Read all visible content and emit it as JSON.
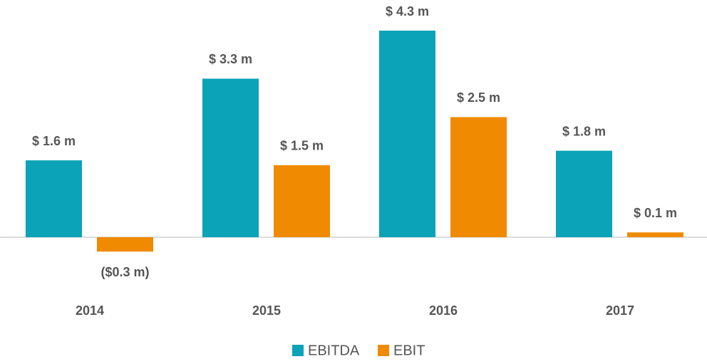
{
  "chart_data": {
    "type": "bar",
    "categories": [
      "2014",
      "2015",
      "2016",
      "2017"
    ],
    "series": [
      {
        "name": "EBITDA",
        "color": "#0aa3b8",
        "values": [
          1.6,
          3.3,
          4.3,
          1.8
        ],
        "value_labels": [
          "$ 1.6 m",
          "$ 3.3 m",
          "$ 4.3 m",
          "$ 1.8 m"
        ]
      },
      {
        "name": "EBIT",
        "color": "#f08a00",
        "values": [
          -0.3,
          1.5,
          2.5,
          0.1
        ],
        "value_labels": [
          "($0.3 m)",
          "$ 1.5 m",
          "$ 2.5 m",
          "$ 0.1 m"
        ]
      }
    ],
    "legend": "bottom"
  }
}
